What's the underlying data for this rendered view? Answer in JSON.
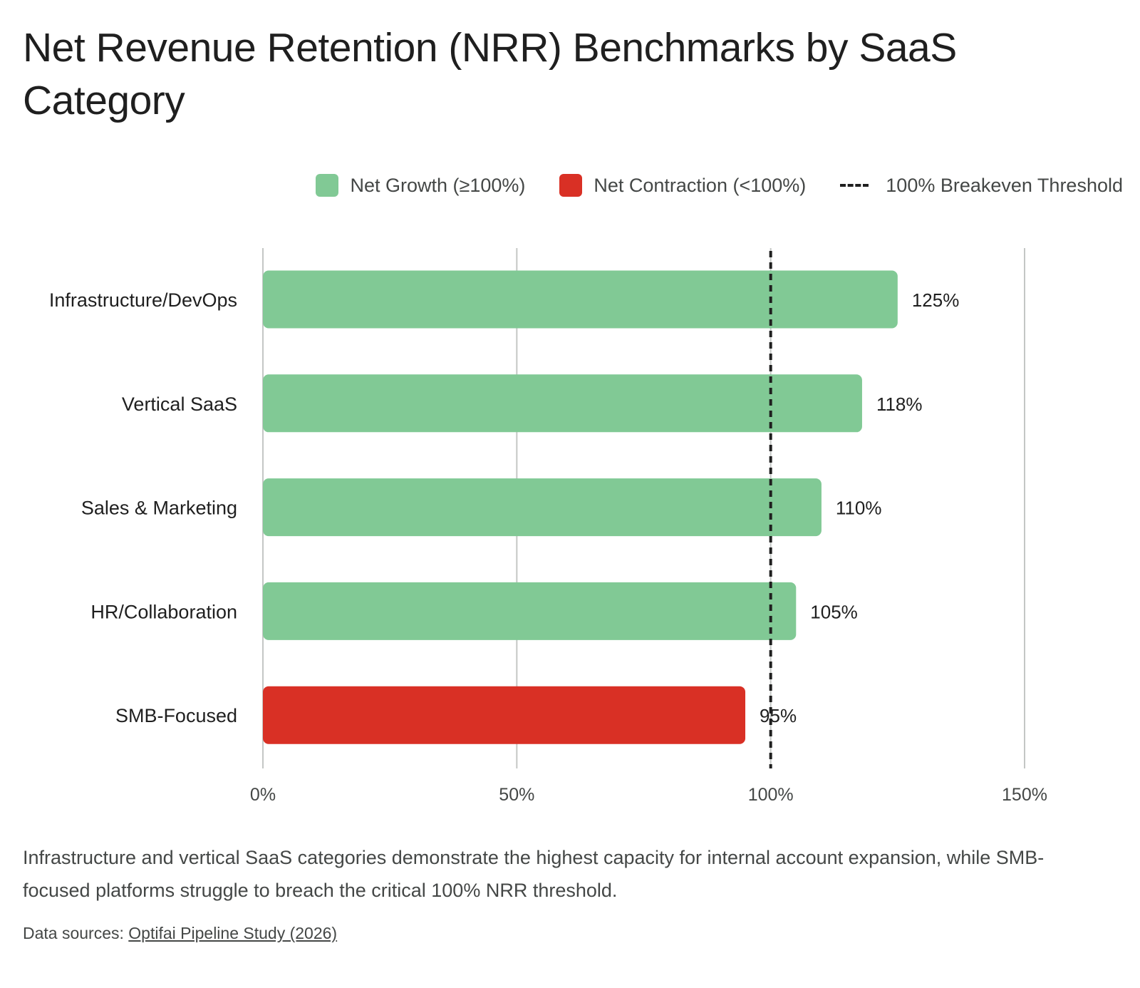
{
  "title": "Net Revenue Retention (NRR) Benchmarks by SaaS Category",
  "legend": {
    "growth_label": "Net Growth (≥100%)",
    "contraction_label": "Net Contraction (<100%)",
    "threshold_label": "100% Breakeven Threshold"
  },
  "colors": {
    "growth": "#81c995",
    "contraction": "#d93025",
    "threshold": "#1f1f1f",
    "grid": "#c4c7c5"
  },
  "chart_data": {
    "type": "bar",
    "orientation": "horizontal",
    "categories": [
      "Infrastructure/DevOps",
      "Vertical SaaS",
      "Sales & Marketing",
      "HR/Collaboration",
      "SMB-Focused"
    ],
    "values": [
      125,
      118,
      110,
      105,
      95
    ],
    "value_labels": [
      "125%",
      "118%",
      "110%",
      "105%",
      "95%"
    ],
    "xlim": [
      0,
      150
    ],
    "xticks": [
      0,
      50,
      100,
      150
    ],
    "xtick_labels": [
      "0%",
      "50%",
      "100%",
      "150%"
    ],
    "threshold": 100,
    "grid": true,
    "legend_position": "top-right"
  },
  "caption": "Infrastructure and vertical SaaS categories demonstrate the highest capacity for internal account expansion, while SMB-focused platforms struggle to breach the critical 100% NRR threshold.",
  "sources": {
    "prefix": "Data sources:",
    "link_text": "Optifai Pipeline Study (2026)"
  }
}
